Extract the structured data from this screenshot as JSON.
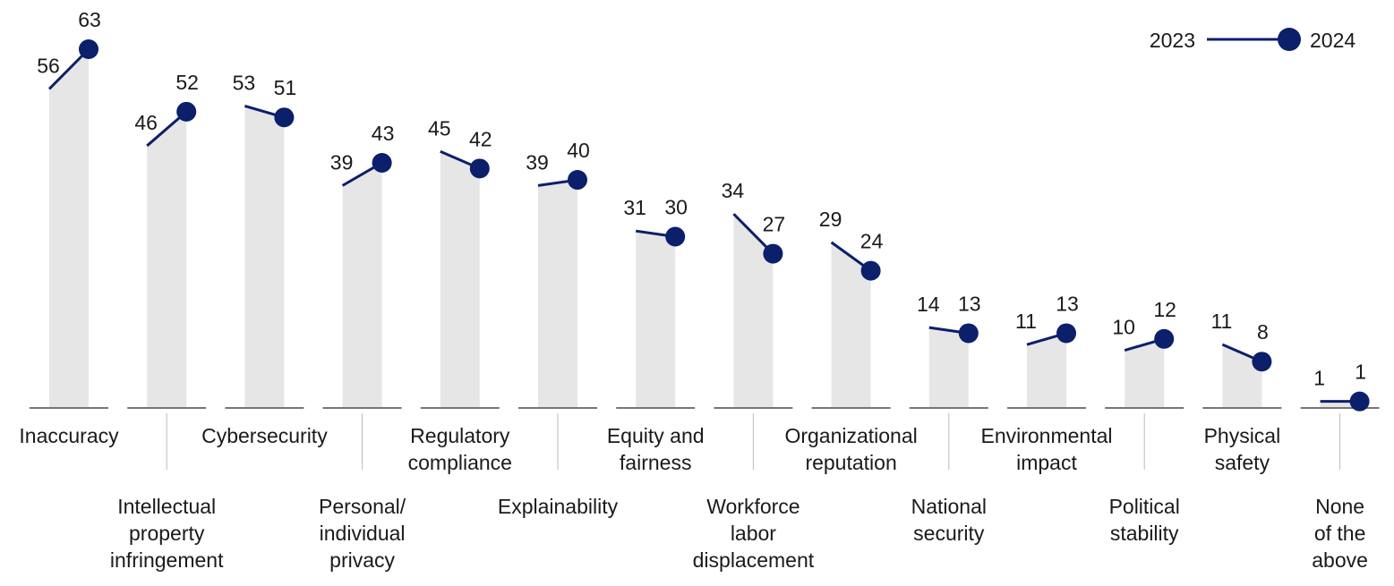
{
  "chart_data": {
    "type": "bar",
    "categories": [
      "Inaccuracy",
      "Intellectual property infringement",
      "Cybersecurity",
      "Personal/ individual privacy",
      "Regulatory compliance",
      "Explainability",
      "Equity and fairness",
      "Workforce labor displacement",
      "Organizational reputation",
      "National security",
      "Environmental impact",
      "Political stability",
      "Physical safety",
      "None of the above"
    ],
    "category_lines": [
      [
        "Inaccuracy"
      ],
      [
        "Intellectual",
        "property",
        "infringement"
      ],
      [
        "Cybersecurity"
      ],
      [
        "Personal/",
        "individual",
        "privacy"
      ],
      [
        "Regulatory",
        "compliance"
      ],
      [
        "Explainability"
      ],
      [
        "Equity and",
        "fairness"
      ],
      [
        "Workforce",
        "labor",
        "displacement"
      ],
      [
        "Organizational",
        "reputation"
      ],
      [
        "National",
        "security"
      ],
      [
        "Environmental",
        "impact"
      ],
      [
        "Political",
        "stability"
      ],
      [
        "Physical",
        "safety"
      ],
      [
        "None",
        "of the",
        "above"
      ]
    ],
    "series": [
      {
        "name": "2023",
        "values": [
          56,
          46,
          53,
          39,
          45,
          39,
          31,
          34,
          29,
          14,
          11,
          10,
          11,
          1
        ]
      },
      {
        "name": "2024",
        "values": [
          63,
          52,
          51,
          43,
          42,
          40,
          30,
          27,
          24,
          13,
          13,
          12,
          8,
          1
        ]
      }
    ],
    "ylim": [
      0,
      63
    ],
    "grid": false,
    "legend": {
      "position": "top-right",
      "left_label": "2023",
      "right_label": "2024"
    },
    "colors": {
      "line": "#0b1f6b",
      "bar": "#e6e6e6",
      "axis": "#777777",
      "divider": "#bbbbbb"
    }
  }
}
